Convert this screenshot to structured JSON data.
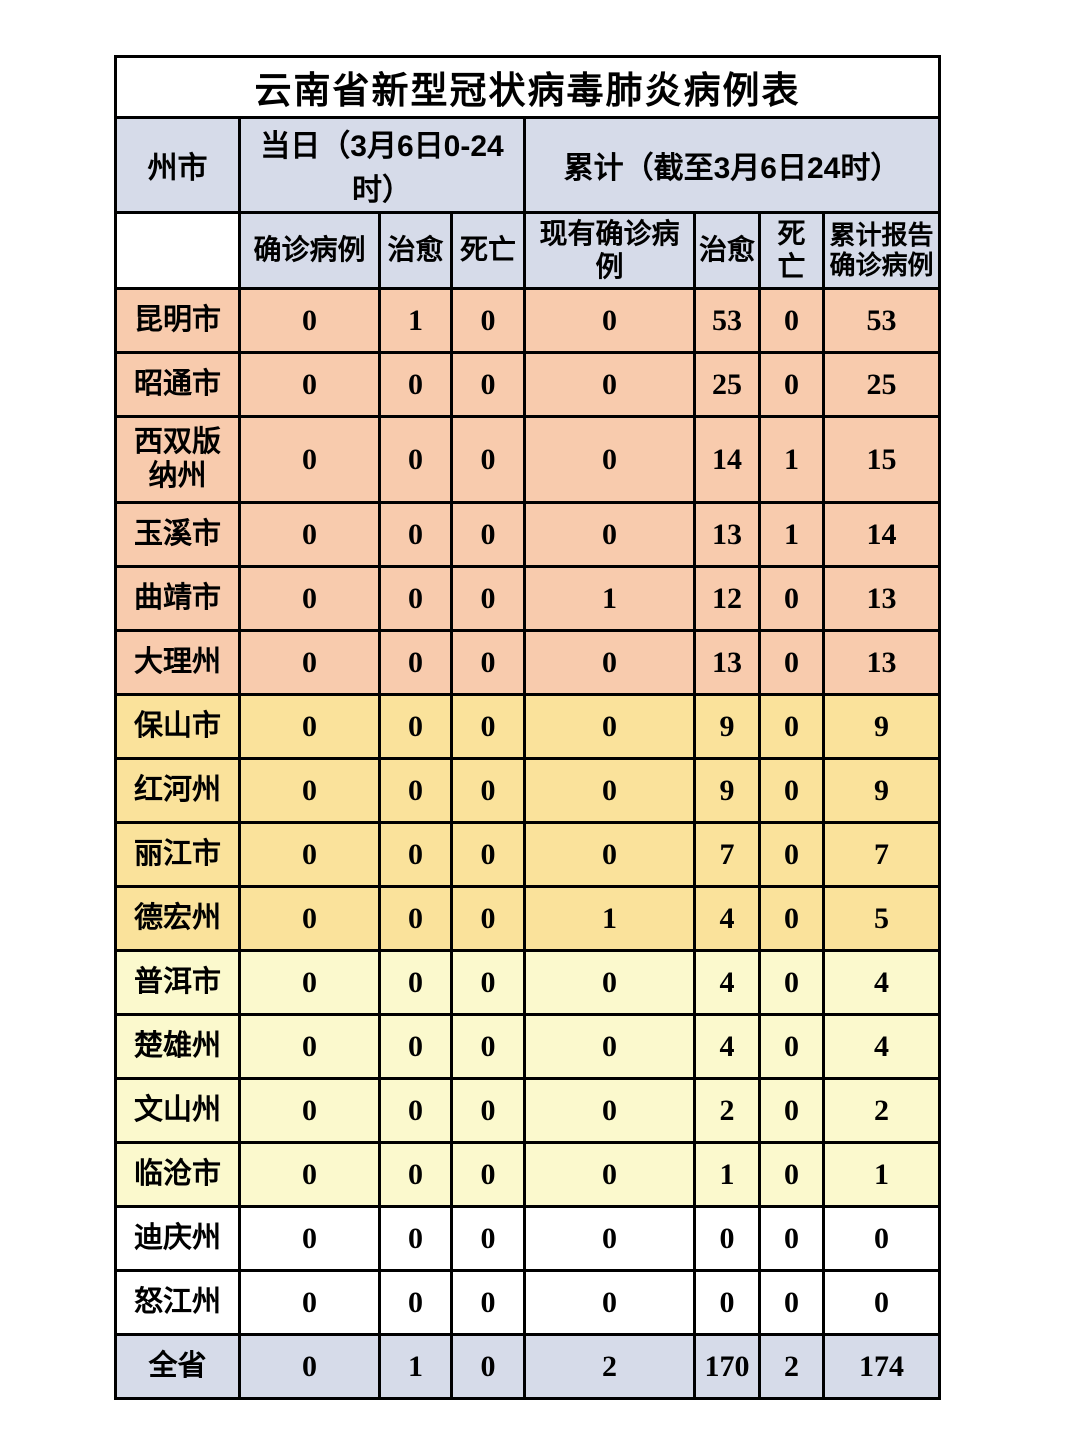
{
  "title": "云南省新型冠状病毒肺炎病例表",
  "header": {
    "region_col": "州市",
    "daily_group": "当日（3月6日0-24时）",
    "cumulative_group": "累计（截至3月6日24时）",
    "columns": [
      "确诊病例",
      "治愈",
      "死亡",
      "现有确诊病例",
      "治愈",
      "死亡",
      "累计报告确诊病例"
    ]
  },
  "rows": [
    {
      "region": "昆明市",
      "values": [
        "0",
        "1",
        "0",
        "0",
        "53",
        "0",
        "53"
      ],
      "band": "salmon",
      "tall": false
    },
    {
      "region": "昭通市",
      "values": [
        "0",
        "0",
        "0",
        "0",
        "25",
        "0",
        "25"
      ],
      "band": "salmon",
      "tall": false
    },
    {
      "region": "西双版纳州",
      "values": [
        "0",
        "0",
        "0",
        "0",
        "14",
        "1",
        "15"
      ],
      "band": "salmon",
      "tall": true
    },
    {
      "region": "玉溪市",
      "values": [
        "0",
        "0",
        "0",
        "0",
        "13",
        "1",
        "14"
      ],
      "band": "salmon",
      "tall": false
    },
    {
      "region": "曲靖市",
      "values": [
        "0",
        "0",
        "0",
        "1",
        "12",
        "0",
        "13"
      ],
      "band": "salmon",
      "tall": false
    },
    {
      "region": "大理州",
      "values": [
        "0",
        "0",
        "0",
        "0",
        "13",
        "0",
        "13"
      ],
      "band": "salmon",
      "tall": false
    },
    {
      "region": "保山市",
      "values": [
        "0",
        "0",
        "0",
        "0",
        "9",
        "0",
        "9"
      ],
      "band": "gold",
      "tall": false
    },
    {
      "region": "红河州",
      "values": [
        "0",
        "0",
        "0",
        "0",
        "9",
        "0",
        "9"
      ],
      "band": "gold",
      "tall": false
    },
    {
      "region": "丽江市",
      "values": [
        "0",
        "0",
        "0",
        "0",
        "7",
        "0",
        "7"
      ],
      "band": "gold",
      "tall": false
    },
    {
      "region": "德宏州",
      "values": [
        "0",
        "0",
        "0",
        "1",
        "4",
        "0",
        "5"
      ],
      "band": "gold",
      "tall": false
    },
    {
      "region": "普洱市",
      "values": [
        "0",
        "0",
        "0",
        "0",
        "4",
        "0",
        "4"
      ],
      "band": "cream",
      "tall": false
    },
    {
      "region": "楚雄州",
      "values": [
        "0",
        "0",
        "0",
        "0",
        "4",
        "0",
        "4"
      ],
      "band": "cream",
      "tall": false
    },
    {
      "region": "文山州",
      "values": [
        "0",
        "0",
        "0",
        "0",
        "2",
        "0",
        "2"
      ],
      "band": "cream",
      "tall": false
    },
    {
      "region": "临沧市",
      "values": [
        "0",
        "0",
        "0",
        "0",
        "1",
        "0",
        "1"
      ],
      "band": "cream",
      "tall": false
    },
    {
      "region": "迪庆州",
      "values": [
        "0",
        "0",
        "0",
        "0",
        "0",
        "0",
        "0"
      ],
      "band": "white",
      "tall": false
    },
    {
      "region": "怒江州",
      "values": [
        "0",
        "0",
        "0",
        "0",
        "0",
        "0",
        "0"
      ],
      "band": "white",
      "tall": false
    }
  ],
  "total_row": {
    "region": "全省",
    "values": [
      "0",
      "1",
      "0",
      "2",
      "170",
      "2",
      "174"
    ],
    "band": "blue",
    "tall": false
  },
  "colors": {
    "header_blue": "#d6dbe9",
    "salmon": "#f8cbad",
    "gold": "#fae29b",
    "cream": "#fbf9cd",
    "white": "#ffffff",
    "blue": "#d6dbe9",
    "border": "#000000"
  }
}
